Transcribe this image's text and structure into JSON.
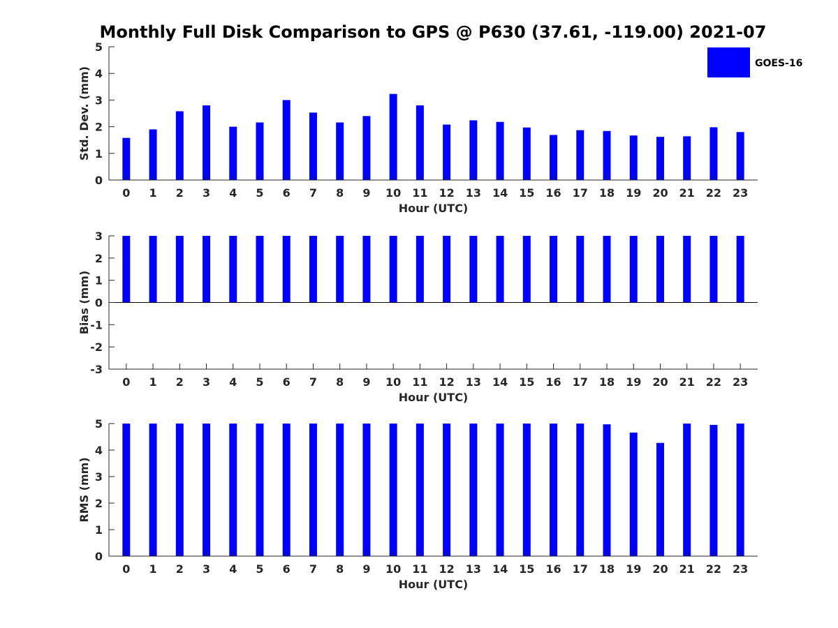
{
  "title": "Monthly Full Disk Comparison to GPS @ P630 (37.61, -119.00) 2021-07",
  "legend": {
    "entries": [
      "GOES-16"
    ],
    "placement": "top-right"
  },
  "colors": {
    "bar": "#0000ff",
    "axis": "#262626",
    "text": "#000000"
  },
  "chart_data": [
    {
      "type": "bar",
      "title": "",
      "xlabel": "Hour (UTC)",
      "ylabel": "Std. Dev. (mm)",
      "ylim": [
        0,
        5
      ],
      "yticks": [
        0,
        1,
        2,
        3,
        4,
        5
      ],
      "grid": false,
      "categories": [
        "0",
        "1",
        "2",
        "3",
        "4",
        "5",
        "6",
        "7",
        "8",
        "9",
        "10",
        "11",
        "12",
        "13",
        "14",
        "15",
        "16",
        "17",
        "18",
        "19",
        "20",
        "21",
        "22",
        "23"
      ],
      "series": [
        {
          "name": "GOES-16",
          "values": [
            1.58,
            1.9,
            2.58,
            2.8,
            2.0,
            2.16,
            3.0,
            2.53,
            2.16,
            2.4,
            3.23,
            2.8,
            2.08,
            2.24,
            2.18,
            1.97,
            1.69,
            1.87,
            1.84,
            1.67,
            1.62,
            1.64,
            1.98,
            1.8
          ]
        }
      ]
    },
    {
      "type": "bar",
      "title": "",
      "xlabel": "Hour (UTC)",
      "ylabel": "Bias (mm)",
      "ylim": [
        -3,
        3
      ],
      "yticks": [
        -3,
        -2,
        -1,
        0,
        1,
        2,
        3
      ],
      "grid": false,
      "categories": [
        "0",
        "1",
        "2",
        "3",
        "4",
        "5",
        "6",
        "7",
        "8",
        "9",
        "10",
        "11",
        "12",
        "13",
        "14",
        "15",
        "16",
        "17",
        "18",
        "19",
        "20",
        "21",
        "22",
        "23"
      ],
      "series": [
        {
          "name": "GOES-16",
          "values": [
            3.0,
            3.0,
            3.0,
            3.0,
            3.0,
            3.0,
            3.0,
            3.0,
            3.0,
            3.0,
            3.0,
            3.0,
            3.0,
            3.0,
            3.0,
            3.0,
            3.0,
            3.0,
            3.0,
            3.0,
            3.0,
            3.0,
            3.0,
            3.0
          ]
        }
      ]
    },
    {
      "type": "bar",
      "title": "",
      "xlabel": "Hour (UTC)",
      "ylabel": "RMS (mm)",
      "ylim": [
        0,
        5
      ],
      "yticks": [
        0,
        1,
        2,
        3,
        4,
        5
      ],
      "grid": false,
      "categories": [
        "0",
        "1",
        "2",
        "3",
        "4",
        "5",
        "6",
        "7",
        "8",
        "9",
        "10",
        "11",
        "12",
        "13",
        "14",
        "15",
        "16",
        "17",
        "18",
        "19",
        "20",
        "21",
        "22",
        "23"
      ],
      "series": [
        {
          "name": "GOES-16",
          "values": [
            5.0,
            5.0,
            5.0,
            5.0,
            5.0,
            5.0,
            5.0,
            5.0,
            5.0,
            5.0,
            5.0,
            5.0,
            5.0,
            5.0,
            5.0,
            5.0,
            5.0,
            5.0,
            4.97,
            4.66,
            4.27,
            5.0,
            4.95,
            5.0
          ]
        }
      ]
    }
  ]
}
